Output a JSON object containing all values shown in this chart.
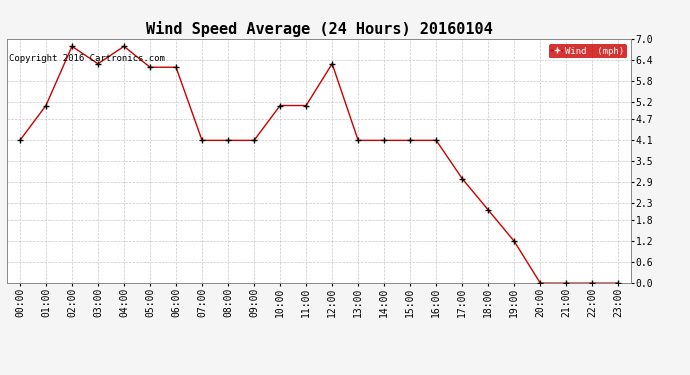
{
  "title": "Wind Speed Average (24 Hours) 20160104",
  "copyright_text": "Copyright 2016 Cartronics.com",
  "x_labels": [
    "00:00",
    "01:00",
    "02:00",
    "03:00",
    "04:00",
    "05:00",
    "06:00",
    "07:00",
    "08:00",
    "09:00",
    "10:00",
    "11:00",
    "12:00",
    "13:00",
    "14:00",
    "15:00",
    "16:00",
    "17:00",
    "18:00",
    "19:00",
    "20:00",
    "21:00",
    "22:00",
    "23:00"
  ],
  "wind_values": [
    4.1,
    5.1,
    6.8,
    6.3,
    6.8,
    6.2,
    6.2,
    4.1,
    4.1,
    4.1,
    5.1,
    5.1,
    6.3,
    4.1,
    4.1,
    4.1,
    4.1,
    3.0,
    2.1,
    1.2,
    0.0,
    0.0,
    0.0,
    0.0
  ],
  "line_color": "#cc0000",
  "marker": "+",
  "marker_color": "#000000",
  "legend_label": "Wind  (mph)",
  "legend_bg": "#cc0000",
  "legend_text_color": "#ffffff",
  "y_ticks": [
    0.0,
    0.6,
    1.2,
    1.8,
    2.3,
    2.9,
    3.5,
    4.1,
    4.7,
    5.2,
    5.8,
    6.4,
    7.0
  ],
  "ylim": [
    0.0,
    7.0
  ],
  "fig_bg_color": "#f5f5f5",
  "plot_bg_color": "#ffffff",
  "grid_color": "#bbbbbb",
  "title_fontsize": 11,
  "copyright_fontsize": 6.5,
  "tick_fontsize": 7,
  "ytick_fontsize": 7
}
